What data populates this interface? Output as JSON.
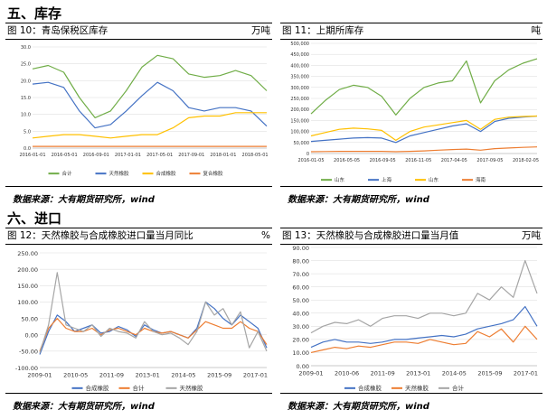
{
  "sections": {
    "inventory": "五、库存",
    "import": "六、进口"
  },
  "figures": [
    {
      "title": "图 10：青岛保税区库存",
      "unit": "万吨",
      "source": "数据来源：大有期货研究所，wind"
    },
    {
      "title": "图 11：上期所库存",
      "unit": "吨",
      "source": "数据来源：大有期货研究所，wind"
    },
    {
      "title": "图 12：天然橡胶与合成橡胶进口量当月同比",
      "unit": "%",
      "source": "数据来源：大有期货研究所，wind"
    },
    {
      "title": "图 13：天然橡胶与合成橡胶进口量当月值",
      "unit": "万吨",
      "source": "数据来源：大有期货研究所，wind"
    }
  ],
  "chart_data": [
    {
      "type": "line",
      "title": "图 10：青岛保税区库存",
      "ylim": [
        0,
        30
      ],
      "yticks": [
        "0.0",
        "5.0",
        "10.0",
        "15.0",
        "20.0",
        "25.0",
        "30.0"
      ],
      "xticks": [
        "2016-01-01",
        "2016-05-01",
        "2016-09-01",
        "2017-01-01",
        "2017-05-01",
        "2017-09-01",
        "2018-01-01",
        "2018-05-01"
      ],
      "x": [
        "2016-01",
        "2016-03",
        "2016-05",
        "2016-07",
        "2016-09",
        "2016-11",
        "2017-01",
        "2017-03",
        "2017-05",
        "2017-07",
        "2017-09",
        "2017-11",
        "2018-01",
        "2018-03",
        "2018-05",
        "2018-06"
      ],
      "series": [
        {
          "name": "合计",
          "color": "#70ad47",
          "values": [
            23.5,
            24.5,
            22.5,
            15,
            9,
            11,
            17,
            24,
            27.5,
            26.5,
            22,
            21,
            21.5,
            23,
            21.5,
            17
          ]
        },
        {
          "name": "天然橡胶",
          "color": "#4472c4",
          "values": [
            19,
            19.5,
            18,
            11,
            6,
            7,
            11,
            15.5,
            19.5,
            17,
            12,
            11,
            12,
            12,
            11,
            6.5
          ]
        },
        {
          "name": "合成橡胶",
          "color": "#ffc000",
          "values": [
            3,
            3.5,
            4,
            4,
            3.5,
            3,
            3.5,
            4,
            4,
            6,
            9,
            9.5,
            9.5,
            10.5,
            10.5,
            10.5
          ]
        },
        {
          "name": "复合橡胶",
          "color": "#ed7d31",
          "values": [
            0.5,
            0.5,
            0.5,
            0.5,
            0.5,
            0.5,
            0.5,
            0.5,
            0.5,
            0.5,
            0.5,
            0.5,
            0.5,
            0.5,
            0.5,
            0.5
          ]
        }
      ]
    },
    {
      "type": "line",
      "title": "图 11：上期所库存",
      "ylim": [
        0,
        500000
      ],
      "yticks": [
        "0",
        "50,000",
        "100,000",
        "150,000",
        "200,000",
        "250,000",
        "300,000",
        "350,000",
        "400,000",
        "450,000",
        "500,000"
      ],
      "xticks": [
        "2016-01-05",
        "2016-05-05",
        "2016-09-05",
        "2016-11-05",
        "2017-04-05",
        "2017-09-05",
        "2018-02-05"
      ],
      "x": [
        "2016-01",
        "2016-03",
        "2016-05",
        "2016-07",
        "2016-09",
        "2016-11a",
        "2016-11b",
        "2017-01",
        "2017-04",
        "2017-06",
        "2017-09",
        "2017-10a",
        "2017-10b",
        "2017-12",
        "2018-02",
        "2018-04",
        "2018-06"
      ],
      "series": [
        {
          "name": "山东",
          "color": "#70ad47",
          "values": [
            180000,
            240000,
            290000,
            310000,
            300000,
            260000,
            175000,
            250000,
            300000,
            320000,
            330000,
            420000,
            230000,
            330000,
            380000,
            410000,
            430000
          ]
        },
        {
          "name": "上海",
          "color": "#4472c4",
          "values": [
            55000,
            60000,
            65000,
            70000,
            72000,
            70000,
            50000,
            80000,
            95000,
            110000,
            125000,
            135000,
            100000,
            145000,
            160000,
            165000,
            170000
          ]
        },
        {
          "name": "山东",
          "color": "#ffc000",
          "values": [
            80000,
            95000,
            110000,
            115000,
            112000,
            105000,
            60000,
            100000,
            120000,
            130000,
            140000,
            150000,
            110000,
            155000,
            165000,
            168000,
            170000
          ]
        },
        {
          "name": "海南",
          "color": "#ed7d31",
          "values": [
            8000,
            9000,
            10000,
            10000,
            10000,
            10000,
            8000,
            10000,
            12000,
            15000,
            18000,
            20000,
            15000,
            22000,
            25000,
            28000,
            30000
          ]
        }
      ]
    },
    {
      "type": "line",
      "title": "图 12：天然橡胶与合成橡胶进口量当月同比",
      "ylim": [
        -100,
        250
      ],
      "yticks": [
        "-100.00",
        "-50.00",
        "0.00",
        "50.00",
        "100.00",
        "150.00",
        "200.00",
        "250.00"
      ],
      "xticks": [
        "2009-01",
        "2010-05",
        "2011-09",
        "2013-01",
        "2014-05",
        "2015-09",
        "2017-01"
      ],
      "x": [
        "2009-01",
        "2009-07",
        "2010-01",
        "2010-05",
        "2010-09",
        "2011-01",
        "2011-05",
        "2011-09",
        "2012-01",
        "2012-05",
        "2012-09",
        "2013-01",
        "2013-05",
        "2013-09",
        "2014-01",
        "2014-05",
        "2014-09",
        "2015-01",
        "2015-05",
        "2015-09",
        "2016-01",
        "2016-05",
        "2016-09",
        "2017-01",
        "2017-05",
        "2017-09",
        "2018-01"
      ],
      "series": [
        {
          "name": "合成橡胶",
          "color": "#4472c4",
          "values": [
            -60,
            10,
            60,
            40,
            10,
            20,
            30,
            5,
            10,
            25,
            15,
            -5,
            30,
            15,
            5,
            10,
            0,
            -10,
            20,
            100,
            80,
            50,
            30,
            60,
            40,
            20,
            -40
          ]
        },
        {
          "name": "合计",
          "color": "#ed7d31",
          "values": [
            -50,
            20,
            50,
            20,
            10,
            10,
            20,
            0,
            15,
            20,
            10,
            0,
            20,
            10,
            5,
            10,
            0,
            -10,
            15,
            40,
            30,
            20,
            20,
            40,
            20,
            10,
            -30
          ]
        },
        {
          "name": "天然橡胶",
          "color": "#a5a5a5",
          "values": [
            -55,
            30,
            190,
            30,
            20,
            10,
            30,
            -5,
            20,
            10,
            5,
            -10,
            40,
            10,
            0,
            5,
            -10,
            -30,
            10,
            100,
            60,
            80,
            30,
            70,
            -40,
            10,
            -50
          ]
        }
      ]
    },
    {
      "type": "line",
      "title": "图 13：天然橡胶与合成橡胶进口量当月值",
      "ylim": [
        0,
        90
      ],
      "yticks": [
        "0.00",
        "10.00",
        "20.00",
        "30.00",
        "40.00",
        "50.00",
        "60.00",
        "70.00",
        "80.00",
        "90.00"
      ],
      "xticks": [
        "2009-01",
        "2010-06",
        "2011-09",
        "2013-01",
        "2014-05",
        "2015-09",
        "2017-01"
      ],
      "x": [
        "2009-01",
        "2009-07",
        "2010-01",
        "2010-07",
        "2011-01",
        "2011-07",
        "2012-01",
        "2012-07",
        "2013-01",
        "2013-07",
        "2014-01",
        "2014-07",
        "2015-01",
        "2015-07",
        "2016-01",
        "2016-07",
        "2017-01",
        "2017-07",
        "2018-01",
        "2018-06"
      ],
      "series": [
        {
          "name": "合成橡胶",
          "color": "#4472c4",
          "values": [
            14,
            18,
            20,
            18,
            18,
            17,
            18,
            20,
            20,
            21,
            22,
            23,
            22,
            24,
            28,
            30,
            32,
            35,
            45,
            30
          ]
        },
        {
          "name": "天然橡胶",
          "color": "#ed7d31",
          "values": [
            10,
            12,
            14,
            13,
            15,
            14,
            16,
            18,
            18,
            17,
            20,
            18,
            16,
            17,
            26,
            22,
            28,
            18,
            30,
            20
          ]
        },
        {
          "name": "合计",
          "color": "#a5a5a5",
          "values": [
            25,
            30,
            33,
            32,
            35,
            30,
            36,
            38,
            38,
            36,
            40,
            40,
            38,
            40,
            55,
            50,
            60,
            52,
            80,
            55
          ]
        }
      ]
    }
  ]
}
